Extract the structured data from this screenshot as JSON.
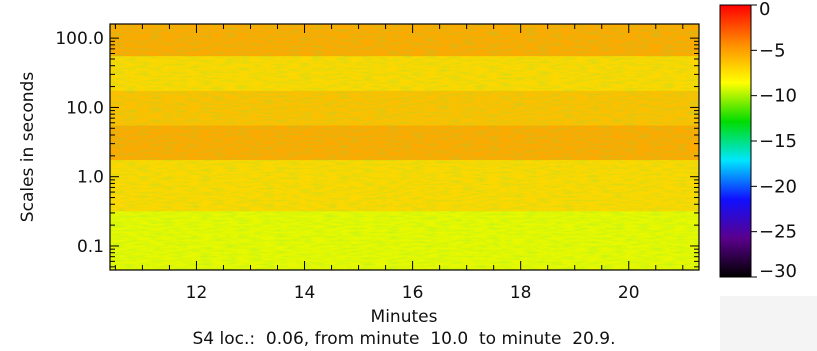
{
  "chart_data": {
    "type": "heatmap",
    "title": "",
    "xlabel": "Minutes",
    "ylabel": "Scales in seconds",
    "xlim": [
      10.4,
      21.3
    ],
    "ylim_log": [
      0.045,
      160
    ],
    "y_scale": "log",
    "x_ticks": [
      12,
      14,
      16,
      18,
      20
    ],
    "x_tick_labels": [
      "12",
      "14",
      "16",
      "18",
      "20"
    ],
    "y_ticks": [
      0.1,
      1.0,
      10.0,
      100.0
    ],
    "y_tick_labels": [
      "0.1",
      "1.0",
      "10.0",
      "100.0"
    ],
    "colorbar": {
      "range": [
        -30,
        0
      ],
      "ticks": [
        0,
        -5,
        -10,
        -15,
        -20,
        -25,
        -30
      ],
      "tick_labels": [
        "0",
        "−5",
        "−10",
        "−15",
        "−20",
        "−25",
        "−30"
      ],
      "colormap": "rainbow",
      "colors": [
        "#000000",
        "#5a008c",
        "#1010ff",
        "#00e6ff",
        "#00dc00",
        "#ffff00",
        "#ff8c00",
        "#ff0000"
      ]
    },
    "power_profile_by_scale": [
      {
        "scale_s": 100.0,
        "power": -5
      },
      {
        "scale_s": 30.0,
        "power": -7
      },
      {
        "scale_s": 10.0,
        "power": -6
      },
      {
        "scale_s": 3.0,
        "power": -5
      },
      {
        "scale_s": 1.0,
        "power": -7
      },
      {
        "scale_s": 0.1,
        "power": -9
      }
    ],
    "caption": "S4 loc.:  0.06, from minute  10.0  to minute  20.9."
  }
}
